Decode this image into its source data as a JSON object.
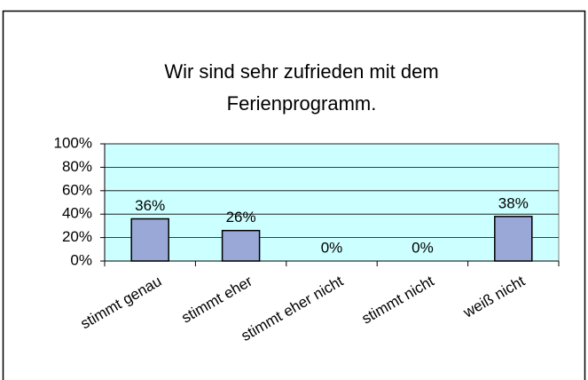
{
  "chart_data": {
    "type": "bar",
    "title": [
      "Wir sind sehr zufrieden mit dem",
      "Ferienprogramm."
    ],
    "categories": [
      "stimmt genau",
      "stimmt eher",
      "stimmt eher nicht",
      "stimmt nicht",
      "weiß nicht"
    ],
    "values": [
      36,
      26,
      0,
      0,
      38
    ],
    "value_labels": [
      "36%",
      "26%",
      "0%",
      "0%",
      "38%"
    ],
    "color": "#99a8d6",
    "ylim": [
      0,
      100
    ],
    "yticks": [
      {
        "value": 0,
        "label": "0%"
      },
      {
        "value": 20,
        "label": "20%"
      },
      {
        "value": 40,
        "label": "40%"
      },
      {
        "value": 60,
        "label": "60%"
      },
      {
        "value": 80,
        "label": "80%"
      },
      {
        "value": 100,
        "label": "100%"
      }
    ],
    "grid": true
  }
}
